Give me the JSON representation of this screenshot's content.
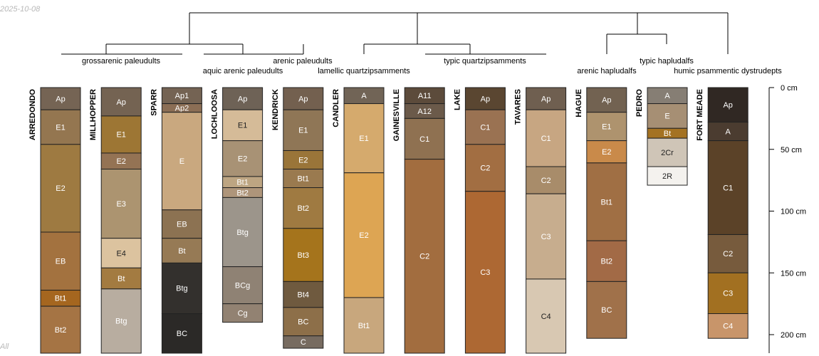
{
  "header": {
    "date": "2025-10-08"
  },
  "footer": {
    "corner_note": "All"
  },
  "colors": {
    "line": "#000000",
    "horizon_border": "#222222",
    "text_light": "#ffffff",
    "text_dark": "#222222"
  },
  "depth_axis": {
    "unit": "cm",
    "max_depth_cm": 215,
    "ticks": [
      {
        "value": 0,
        "label": "0 cm"
      },
      {
        "value": 50,
        "label": "50 cm"
      },
      {
        "value": 100,
        "label": "100 cm"
      },
      {
        "value": 150,
        "label": "150 cm"
      },
      {
        "value": 200,
        "label": "200 cm"
      }
    ]
  },
  "dendrogram": {
    "taxa_labels": [
      "grossarenic paleudults",
      "arenic paleudults",
      "aquic arenic paleudults",
      "lamellic quartzipsamments",
      "typic quartzipsamments",
      "typic hapludalfs",
      "arenic hapludalfs",
      "humic psammentic dystrudepts"
    ]
  },
  "profiles": [
    {
      "name": "ARREDONDO",
      "horizons": [
        {
          "name": "Ap",
          "top": 0,
          "bottom": 18,
          "color": "#756454"
        },
        {
          "name": "E1",
          "top": 18,
          "bottom": 46,
          "color": "#947650"
        },
        {
          "name": "E2",
          "top": 46,
          "bottom": 117,
          "color": "#9e7a41"
        },
        {
          "name": "EB",
          "top": 117,
          "bottom": 164,
          "color": "#a3723f"
        },
        {
          "name": "Bt1",
          "top": 164,
          "bottom": 177,
          "color": "#a5661f"
        },
        {
          "name": "Bt2",
          "top": 177,
          "bottom": 215,
          "color": "#a57444"
        }
      ]
    },
    {
      "name": "MILLHOPPER",
      "horizons": [
        {
          "name": "Ap",
          "top": 0,
          "bottom": 23,
          "color": "#746352"
        },
        {
          "name": "E1",
          "top": 23,
          "bottom": 53,
          "color": "#9d7634"
        },
        {
          "name": "E2",
          "top": 53,
          "bottom": 66,
          "color": "#947354"
        },
        {
          "name": "E3",
          "top": 66,
          "bottom": 122,
          "color": "#ac9470"
        },
        {
          "name": "E4",
          "top": 122,
          "bottom": 146,
          "color": "#dcc39f"
        },
        {
          "name": "Bt",
          "top": 146,
          "bottom": 163,
          "color": "#a37b41"
        },
        {
          "name": "Btg",
          "top": 163,
          "bottom": 215,
          "color": "#b8ada0"
        }
      ]
    },
    {
      "name": "SPARR",
      "horizons": [
        {
          "name": "Ap1",
          "top": 0,
          "bottom": 13,
          "color": "#746353"
        },
        {
          "name": "Ap2",
          "top": 13,
          "bottom": 20,
          "color": "#8b6e55"
        },
        {
          "name": "E",
          "top": 20,
          "bottom": 99,
          "color": "#c9a87f"
        },
        {
          "name": "EB",
          "top": 99,
          "bottom": 122,
          "color": "#8c7252"
        },
        {
          "name": "Bt",
          "top": 122,
          "bottom": 142,
          "color": "#967a55"
        },
        {
          "name": "Btg",
          "top": 142,
          "bottom": 183,
          "color": "#33302d"
        },
        {
          "name": "BC",
          "top": 183,
          "bottom": 215,
          "color": "#2b2927"
        }
      ]
    },
    {
      "name": "LOCHLOOSA",
      "horizons": [
        {
          "name": "Ap",
          "top": 0,
          "bottom": 18,
          "color": "#6e6256"
        },
        {
          "name": "E1",
          "top": 18,
          "bottom": 43,
          "color": "#d5bb98"
        },
        {
          "name": "E2",
          "top": 43,
          "bottom": 72,
          "color": "#a89275"
        },
        {
          "name": "Bt1",
          "top": 72,
          "bottom": 81,
          "color": "#bda582"
        },
        {
          "name": "Bt2",
          "top": 81,
          "bottom": 89,
          "color": "#ae957a"
        },
        {
          "name": "Btg",
          "top": 89,
          "bottom": 145,
          "color": "#9c958b"
        },
        {
          "name": "BCg",
          "top": 145,
          "bottom": 175,
          "color": "#8f8274"
        },
        {
          "name": "Cg",
          "top": 175,
          "bottom": 190,
          "color": "#928272"
        }
      ]
    },
    {
      "name": "KENDRICK",
      "horizons": [
        {
          "name": "Ap",
          "top": 0,
          "bottom": 18,
          "color": "#73604f"
        },
        {
          "name": "E1",
          "top": 18,
          "bottom": 51,
          "color": "#8f7656"
        },
        {
          "name": "E2",
          "top": 51,
          "bottom": 66,
          "color": "#9a7539"
        },
        {
          "name": "Bt1",
          "top": 66,
          "bottom": 81,
          "color": "#9a7a4f"
        },
        {
          "name": "Bt2",
          "top": 81,
          "bottom": 114,
          "color": "#9f7a41"
        },
        {
          "name": "Bt3",
          "top": 114,
          "bottom": 157,
          "color": "#a5741c"
        },
        {
          "name": "Bt4",
          "top": 157,
          "bottom": 178,
          "color": "#6f5a3f"
        },
        {
          "name": "BC",
          "top": 178,
          "bottom": 201,
          "color": "#8d6f49"
        },
        {
          "name": "C",
          "top": 201,
          "bottom": 211,
          "color": "#776b60"
        }
      ]
    },
    {
      "name": "CANDLER",
      "horizons": [
        {
          "name": "A",
          "top": 0,
          "bottom": 13,
          "color": "#716456"
        },
        {
          "name": "E1",
          "top": 13,
          "bottom": 69,
          "color": "#d5aa6d"
        },
        {
          "name": "E2",
          "top": 69,
          "bottom": 170,
          "color": "#dda553"
        },
        {
          "name": "Bt1",
          "top": 170,
          "bottom": 215,
          "color": "#c8a77d"
        }
      ]
    },
    {
      "name": "GAINESVILLE",
      "horizons": [
        {
          "name": "A11",
          "top": 0,
          "bottom": 13,
          "color": "#5c4b3b"
        },
        {
          "name": "A12",
          "top": 13,
          "bottom": 25,
          "color": "#6b5a4a"
        },
        {
          "name": "C1",
          "top": 25,
          "bottom": 58,
          "color": "#8f7151"
        },
        {
          "name": "C2",
          "top": 58,
          "bottom": 215,
          "color": "#a26d3f"
        }
      ]
    },
    {
      "name": "LAKE",
      "horizons": [
        {
          "name": "Ap",
          "top": 0,
          "bottom": 18,
          "color": "#5a4631"
        },
        {
          "name": "C1",
          "top": 18,
          "bottom": 46,
          "color": "#9a7252"
        },
        {
          "name": "C2",
          "top": 46,
          "bottom": 84,
          "color": "#a26e42"
        },
        {
          "name": "C3",
          "top": 84,
          "bottom": 215,
          "color": "#ad6833"
        }
      ]
    },
    {
      "name": "TAVARES",
      "horizons": [
        {
          "name": "Ap",
          "top": 0,
          "bottom": 18,
          "color": "#6f5f50"
        },
        {
          "name": "C1",
          "top": 18,
          "bottom": 64,
          "color": "#c7a682"
        },
        {
          "name": "C2",
          "top": 64,
          "bottom": 86,
          "color": "#a88c6a"
        },
        {
          "name": "C3",
          "top": 86,
          "bottom": 155,
          "color": "#c7ad8e"
        },
        {
          "name": "C4",
          "top": 155,
          "bottom": 215,
          "color": "#d8c8b2"
        }
      ]
    },
    {
      "name": "HAGUE",
      "horizons": [
        {
          "name": "Ap",
          "top": 0,
          "bottom": 20,
          "color": "#726251"
        },
        {
          "name": "E1",
          "top": 20,
          "bottom": 43,
          "color": "#ae936e"
        },
        {
          "name": "E2",
          "top": 43,
          "bottom": 61,
          "color": "#c98a4a"
        },
        {
          "name": "Bt1",
          "top": 61,
          "bottom": 124,
          "color": "#a06f44"
        },
        {
          "name": "Bt2",
          "top": 124,
          "bottom": 157,
          "color": "#a26a46"
        },
        {
          "name": "BC",
          "top": 157,
          "bottom": 203,
          "color": "#a0714a"
        }
      ]
    },
    {
      "name": "PEDRO",
      "horizons": [
        {
          "name": "A",
          "top": 0,
          "bottom": 13,
          "color": "#867e74"
        },
        {
          "name": "E",
          "top": 13,
          "bottom": 33,
          "color": "#a68f74"
        },
        {
          "name": "Bt",
          "top": 33,
          "bottom": 41,
          "color": "#a47222"
        },
        {
          "name": "2Cr",
          "top": 41,
          "bottom": 64,
          "color": "#cfc5b7"
        },
        {
          "name": "2R",
          "top": 64,
          "bottom": 79,
          "color": "#f4f2ee"
        }
      ]
    },
    {
      "name": "FORT MEADE",
      "horizons": [
        {
          "name": "Ap",
          "top": 0,
          "bottom": 28,
          "color": "#302823"
        },
        {
          "name": "A",
          "top": 28,
          "bottom": 43,
          "color": "#4b3c30"
        },
        {
          "name": "C1",
          "top": 43,
          "bottom": 119,
          "color": "#5b4228"
        },
        {
          "name": "C2",
          "top": 119,
          "bottom": 150,
          "color": "#775b3d"
        },
        {
          "name": "C3",
          "top": 150,
          "bottom": 183,
          "color": "#a27021"
        },
        {
          "name": "C4",
          "top": 183,
          "bottom": 203,
          "color": "#c8956a"
        }
      ]
    }
  ]
}
